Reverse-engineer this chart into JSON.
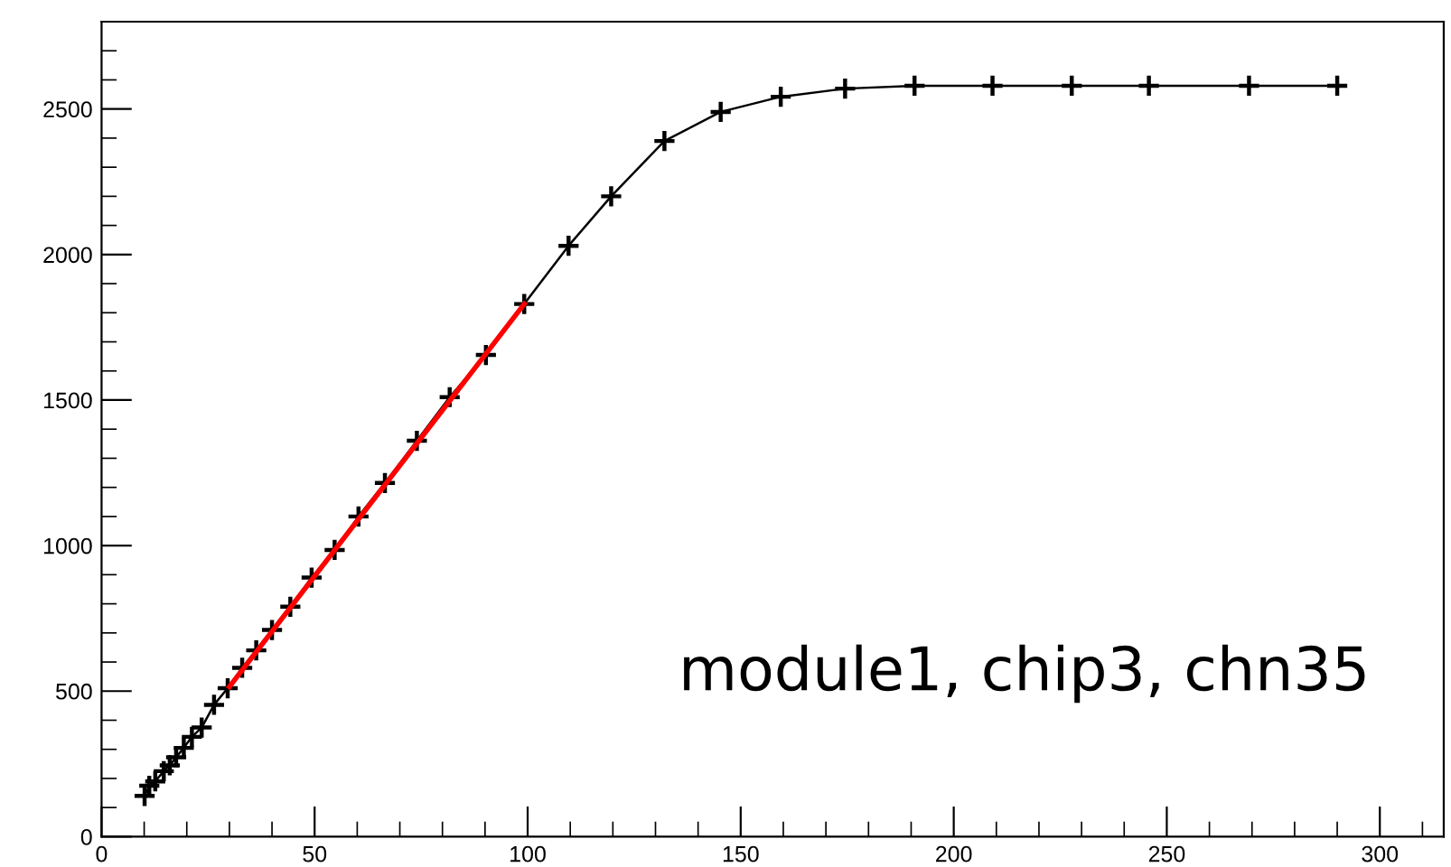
{
  "chart_data": {
    "type": "line",
    "x": [
      10.1,
      11.2,
      12.6,
      14.6,
      16,
      17.5,
      19.3,
      21.2,
      23.5,
      26.4,
      29.6,
      33,
      36.3,
      40,
      44.3,
      49.3,
      54.7,
      60.3,
      66.5,
      74,
      81.7,
      90.2,
      99.2,
      109.6,
      119.6,
      132.1,
      145.3,
      159.4,
      174.5,
      190.8,
      209.1,
      227.7,
      245.8,
      269.3,
      290
    ],
    "series": [
      {
        "color": "#000000",
        "marker": "cross",
        "values": [
          140,
          175,
          190,
          225,
          245,
          273,
          305,
          343,
          375,
          453,
          510,
          580,
          640,
          710,
          790,
          890,
          985,
          1100,
          1215,
          1360,
          1510,
          1655,
          1830,
          2030,
          2200,
          2390,
          2490,
          2542,
          2570,
          2580,
          2580,
          2580,
          2580,
          2580,
          2580
        ]
      },
      {
        "type": "line",
        "color": "#ff0000",
        "marker": "none",
        "x": [
          30,
          99.2
        ],
        "values": [
          515,
          1830
        ]
      }
    ],
    "xlim": [
      0,
      315
    ],
    "ylim": [
      0,
      2800
    ],
    "xticks": [
      0,
      50,
      100,
      150,
      200,
      250,
      300
    ],
    "yticks": [
      0,
      500,
      1000,
      1500,
      2000,
      2500
    ],
    "grid": false,
    "annotations": [
      "module1, chip3, chn35"
    ]
  }
}
